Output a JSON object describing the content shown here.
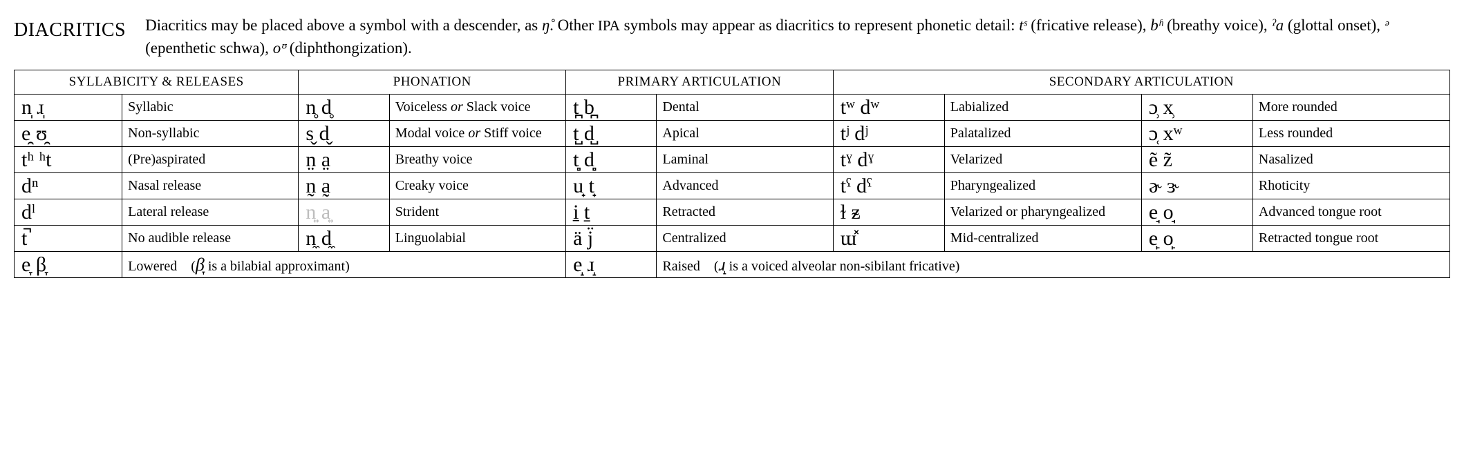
{
  "header": {
    "title": "DIACRITICS",
    "desc_prefix": "Diacritics may be placed above a symbol with a descender, as ",
    "desc_example": "ŋ̊",
    "desc_mid": ".  Other ",
    "desc_ipa": "IPA",
    "desc_after_ipa": " symbols may appear as diacritics to represent phonetic detail: ",
    "ex1_sym": "tˢ",
    "ex1_lab": " (fricative release), ",
    "ex2_sym": "bʱ",
    "ex2_lab": " (breathy voice), ",
    "ex3_sym": "ˀa",
    "ex3_lab": " (glottal onset), ",
    "ex4_sym": "ᵊ",
    "ex4_lab": " (epenthetic schwa), ",
    "ex5_sym": "oᶷ",
    "ex5_lab": " (diphthongization)."
  },
  "columns": {
    "h1": "SYLLABICITY & RELEASES",
    "h2": "PHONATION",
    "h3": "PRIMARY ARTICULATION",
    "h4": "SECONDARY ARTICULATION"
  },
  "rows": [
    {
      "a_sym": "n̩ ɹ̩",
      "a_lab": "Syllabic",
      "b_sym": "n̥ d̥",
      "b_lab": "Voiceless or Slack voice",
      "b_it": "or",
      "c_sym": "t̪ b̪",
      "c_lab": "Dental",
      "d_sym": "tʷ dʷ",
      "d_lab": "Labialized",
      "e_sym": "ɔ̹ x̹",
      "e_lab": "More rounded"
    },
    {
      "a_sym": "e̯ ʊ̯",
      "a_lab": "Non-syllabic",
      "b_sym": "s̬ d̬",
      "b_lab": "Modal voice or Stiff voice",
      "b_it": "or",
      "c_sym": "t̺ d̺",
      "c_lab": "Apical",
      "d_sym": "tʲ dʲ",
      "d_lab": "Palatalized",
      "e_sym": "ɔ̜ xʷ",
      "e_lab": "Less rounded"
    },
    {
      "a_sym": "tʰ ʰt",
      "a_lab": "(Pre)aspirated",
      "b_sym": "n̤ a̤",
      "b_lab": "Breathy voice",
      "c_sym": "t̻ d̻",
      "c_lab": "Laminal",
      "d_sym": "tˠ dˠ",
      "d_lab": "Velarized",
      "e_sym": "ẽ z̃",
      "e_lab": "Nasalized"
    },
    {
      "a_sym": "dⁿ",
      "a_lab": "Nasal release",
      "b_sym": "n̰ a̰",
      "b_lab": "Creaky voice",
      "c_sym": "u̟ t̟",
      "c_lab": "Advanced",
      "d_sym": "tˤ dˤ",
      "d_lab": "Pharyngealized",
      "e_sym": "ɚ ɝ",
      "e_lab": "Rhoticity"
    },
    {
      "a_sym": "dˡ",
      "a_lab": "Lateral release",
      "b_sym": "n͍ a͍",
      "b_lab": "Strident",
      "b_gray": true,
      "c_sym": "i̠ t̠",
      "c_lab": "Retracted",
      "d_sym": "ɫ ᵶ",
      "d_lab": "Velarized or pharyngealized",
      "e_sym": "e̘ o̘",
      "e_lab": "Advanced tongue root"
    },
    {
      "a_sym": "t̚",
      "a_lab": "No audible release",
      "b_sym": "n̼ d̼",
      "b_lab": "Linguolabial",
      "c_sym": "ä j̈",
      "c_lab": "Centralized",
      "d_sym": "ɯ̽",
      "d_lab": "Mid-centralized",
      "e_sym": "e̙ o̙",
      "e_lab": "Retracted tongue root"
    }
  ],
  "bottom": {
    "left_sym": "e̞ β̞",
    "left_word": "Lowered",
    "left_note_sym": "β̞",
    "left_note_txt": " is a bilabial approximant)",
    "right_sym": "e̝ ɹ̝",
    "right_word": "Raised",
    "right_note_sym": "ɹ̝",
    "right_note_txt": " is a voiced alveolar non-sibilant fricative)"
  }
}
